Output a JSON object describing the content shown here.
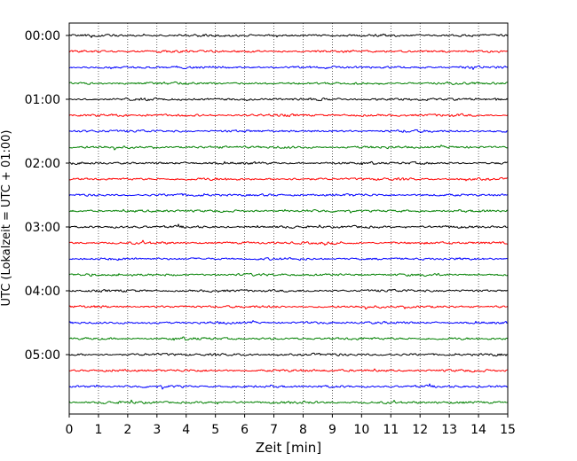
{
  "chart_data": {
    "type": "line",
    "title": "",
    "xlabel": "Zeit  [min]",
    "ylabel": "UTC (Lokalzeit = UTC + 01:00)",
    "xlim": [
      0,
      15
    ],
    "x_ticks": [
      "0",
      "1",
      "2",
      "3",
      "4",
      "5",
      "6",
      "7",
      "8",
      "9",
      "10",
      "11",
      "12",
      "13",
      "14",
      "15"
    ],
    "y_tick_labels": [
      "00:00",
      "01:00",
      "02:00",
      "03:00",
      "04:00",
      "05:00"
    ],
    "rows_per_hour": 4,
    "minutes_per_row": 15,
    "row_count": 24,
    "trace_colors": [
      "#000000",
      "#ff0000",
      "#0000ff",
      "#008000"
    ],
    "vertical_grid": "dotted",
    "legend": "none"
  }
}
